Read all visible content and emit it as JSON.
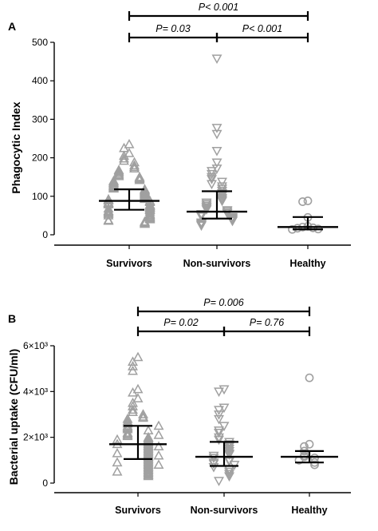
{
  "colors": {
    "marker": "#a0a0a0",
    "bar": "#000000"
  },
  "chart_data": [
    {
      "panel": "A",
      "type": "scatter",
      "ylabel": "Phagocytic Index",
      "y_ticks": [
        "0",
        "100",
        "200",
        "300",
        "400",
        "500"
      ],
      "ylim": [
        0,
        500
      ],
      "categories": [
        "Survivors",
        "Non-survivors",
        "Healthy"
      ],
      "summary": [
        {
          "category": "Survivors",
          "median": 88,
          "q1": 65,
          "q3": 118
        },
        {
          "category": "Non-survivors",
          "median": 60,
          "q1": 42,
          "q3": 113
        },
        {
          "category": "Healthy",
          "median": 20,
          "q1": 14,
          "q3": 46
        }
      ],
      "comparisons": [
        {
          "label": "P< 0.001",
          "from": "Survivors",
          "to": "Healthy"
        },
        {
          "label": "P= 0.03",
          "from": "Survivors",
          "to": "Non-survivors"
        },
        {
          "label": "P< 0.001",
          "from": "Non-survivors",
          "to": "Healthy"
        }
      ],
      "series": [
        {
          "category": "Survivors",
          "marker": "triangle-up",
          "values": [
            235,
            225,
            212,
            205,
            198,
            192,
            188,
            180,
            176,
            172,
            168,
            165,
            162,
            158,
            155,
            152,
            150,
            147,
            145,
            142,
            140,
            138,
            135,
            133,
            130,
            128,
            126,
            124,
            122,
            120,
            118,
            116,
            114,
            112,
            110,
            108,
            106,
            104,
            102,
            100,
            98,
            96,
            95,
            93,
            92,
            90,
            89,
            88,
            87,
            85,
            84,
            83,
            82,
            80,
            79,
            78,
            77,
            76,
            75,
            74,
            72,
            71,
            70,
            69,
            68,
            66,
            65,
            64,
            62,
            61,
            60,
            58,
            57,
            55,
            54,
            52,
            51,
            50,
            48,
            47,
            45,
            44,
            42,
            40,
            38,
            36,
            34,
            32,
            30,
            28
          ]
        },
        {
          "category": "Non-survivors",
          "marker": "triangle-down",
          "values": [
            458,
            278,
            262,
            218,
            188,
            172,
            166,
            158,
            150,
            145,
            138,
            132,
            126,
            120,
            114,
            108,
            102,
            96,
            92,
            88,
            84,
            80,
            76,
            72,
            70,
            66,
            64,
            62,
            58,
            56,
            54,
            52,
            50,
            48,
            46,
            44,
            42,
            40,
            38,
            36,
            32,
            30,
            28,
            26,
            24
          ]
        },
        {
          "category": "Healthy",
          "marker": "circle",
          "values": [
            88,
            86,
            45,
            22,
            20,
            18,
            17,
            15,
            14
          ]
        }
      ]
    },
    {
      "panel": "B",
      "type": "scatter",
      "ylabel": "Bacterial uptake (CFU/ml)",
      "y_ticks": [
        "0",
        "2×10³",
        "4×10³",
        "6×10³"
      ],
      "ylim": [
        0,
        6000
      ],
      "categories": [
        "Survivors",
        "Non-survivors",
        "Healthy"
      ],
      "summary": [
        {
          "category": "Survivors",
          "median": 1700,
          "q1": 1050,
          "q3": 2500
        },
        {
          "category": "Non-survivors",
          "median": 1150,
          "q1": 750,
          "q3": 1800
        },
        {
          "category": "Healthy",
          "median": 1150,
          "q1": 900,
          "q3": 1400
        }
      ],
      "comparisons": [
        {
          "label": "P= 0.006",
          "from": "Survivors",
          "to": "Healthy"
        },
        {
          "label": "P= 0.02",
          "from": "Survivors",
          "to": "Non-survivors"
        },
        {
          "label": "P= 0.76",
          "from": "Non-survivors",
          "to": "Healthy"
        }
      ],
      "series": [
        {
          "category": "Survivors",
          "marker": "triangle-up",
          "values": [
            5500,
            5300,
            5100,
            4900,
            4100,
            3950,
            3700,
            3500,
            3350,
            3200,
            3100,
            3000,
            2900,
            2850,
            2800,
            2700,
            2650,
            2600,
            2500,
            2450,
            2400,
            2350,
            2300,
            2200,
            2150,
            2100,
            2050,
            2000,
            1950,
            1900,
            1850,
            1800,
            1750,
            1700,
            1650,
            1600,
            1550,
            1500,
            1450,
            1400,
            1350,
            1300,
            1250,
            1200,
            1150,
            1100,
            1050,
            1000,
            950,
            900,
            850,
            800,
            750,
            700,
            650,
            600,
            550,
            500,
            450,
            400,
            350,
            300,
            500,
            900,
            1300,
            1700,
            2100,
            2500,
            1200,
            1600,
            800,
            1900
          ]
        },
        {
          "category": "Non-survivors",
          "marker": "triangle-down",
          "values": [
            4100,
            4000,
            3300,
            3200,
            3000,
            2800,
            2500,
            2300,
            2200,
            2000,
            1900,
            1800,
            1700,
            1600,
            1500,
            1400,
            1300,
            1250,
            1200,
            1100,
            1000,
            950,
            900,
            850,
            800,
            700,
            600,
            500,
            400,
            300,
            100
          ]
        },
        {
          "category": "Healthy",
          "marker": "circle",
          "values": [
            4600,
            1700,
            1600,
            1400,
            1200,
            1150,
            1100,
            1000,
            900,
            800
          ]
        }
      ]
    }
  ]
}
